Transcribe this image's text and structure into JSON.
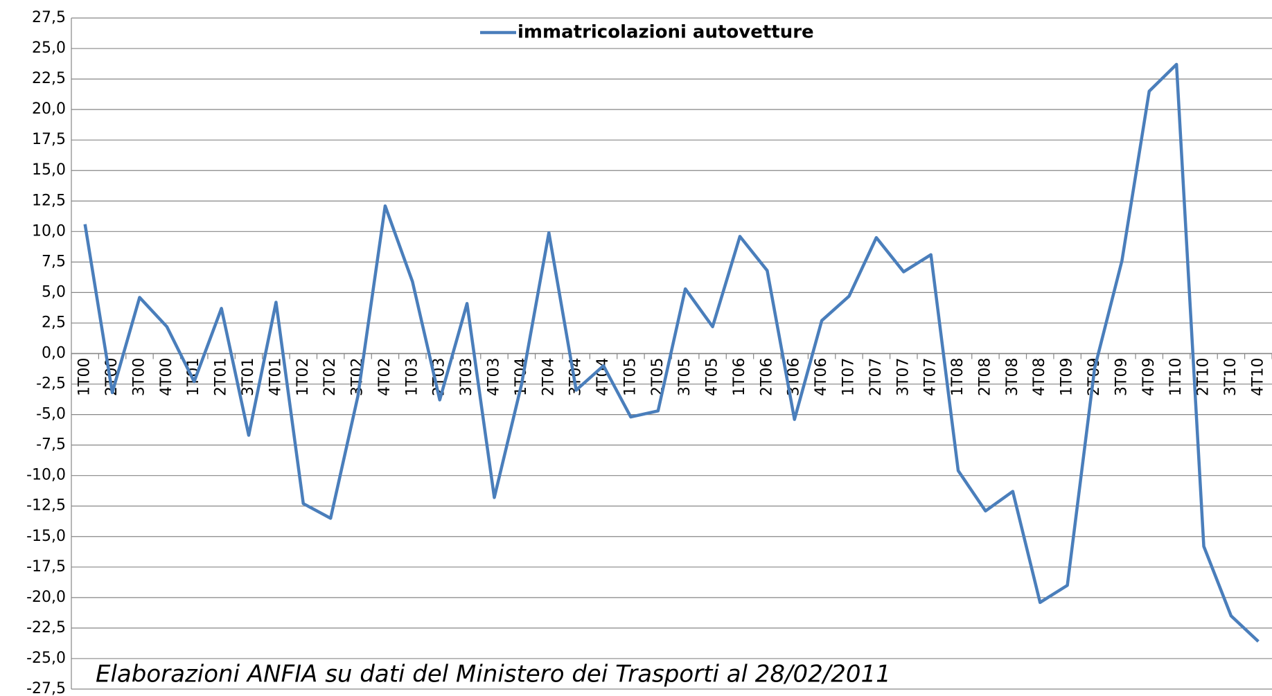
{
  "chart_data": {
    "type": "line",
    "series": [
      {
        "name": "immatricolazioni autovetture",
        "color": "#4a7ebb",
        "values": [
          10.6,
          -3.2,
          4.6,
          2.2,
          -2.3,
          3.7,
          -6.7,
          4.2,
          -12.3,
          -13.5,
          -3.5,
          12.1,
          5.9,
          -3.8,
          4.1,
          -11.8,
          -2.5,
          9.9,
          -3.0,
          -1.0,
          -5.2,
          -4.7,
          5.3,
          2.2,
          9.6,
          6.8,
          -5.4,
          2.7,
          4.7,
          9.5,
          6.7,
          8.1,
          -9.6,
          -12.9,
          -11.3,
          -20.4,
          -19.0,
          -1.2,
          7.6,
          21.5,
          23.7,
          -15.8,
          -21.5,
          -23.6
        ]
      }
    ],
    "categories": [
      "1T00",
      "2T00",
      "3T00",
      "4T00",
      "1T01",
      "2T01",
      "3T01",
      "4T01",
      "1T02",
      "2T02",
      "3T02",
      "4T02",
      "1T03",
      "2T03",
      "3T03",
      "4T03",
      "1T04",
      "2T04",
      "3T04",
      "4T04",
      "1T05",
      "2T05",
      "3T05",
      "4T05",
      "1T06",
      "2T06",
      "3T06",
      "4T06",
      "1T07",
      "2T07",
      "3T07",
      "4T07",
      "1T08",
      "2T08",
      "3T08",
      "4T08",
      "1T09",
      "2T09",
      "3T09",
      "4T09",
      "1T10",
      "2T10",
      "3T10",
      "4T10"
    ],
    "ylim": [
      -27.5,
      27.5
    ],
    "yticks": [
      {
        "value": -27.5,
        "label": "-27,5"
      },
      {
        "value": -25,
        "label": "-25,0"
      },
      {
        "value": -22.5,
        "label": "-22,5"
      },
      {
        "value": -20,
        "label": "-20,0"
      },
      {
        "value": -17.5,
        "label": "-17,5"
      },
      {
        "value": -15,
        "label": "-15,0"
      },
      {
        "value": -12.5,
        "label": "-12,5"
      },
      {
        "value": -10,
        "label": "-10,0"
      },
      {
        "value": -7.5,
        "label": "-7,5"
      },
      {
        "value": -5,
        "label": "-5,0"
      },
      {
        "value": -2.5,
        "label": "-2,5"
      },
      {
        "value": 0,
        "label": "0,0"
      },
      {
        "value": 2.5,
        "label": "2,5"
      },
      {
        "value": 5,
        "label": "5,0"
      },
      {
        "value": 7.5,
        "label": "7,5"
      },
      {
        "value": 10,
        "label": "10,0"
      },
      {
        "value": 12.5,
        "label": "12,5"
      },
      {
        "value": 15,
        "label": "15,0"
      },
      {
        "value": 17.5,
        "label": "17,5"
      },
      {
        "value": 20,
        "label": "20,0"
      },
      {
        "value": 22.5,
        "label": "22,5"
      },
      {
        "value": 25,
        "label": "25,0"
      },
      {
        "value": 27.5,
        "label": "27,5"
      }
    ],
    "grid": true,
    "legend": "top",
    "annotation": "Elaborazioni ANFIA su dati del Ministero dei Trasporti al 28/02/2011"
  }
}
